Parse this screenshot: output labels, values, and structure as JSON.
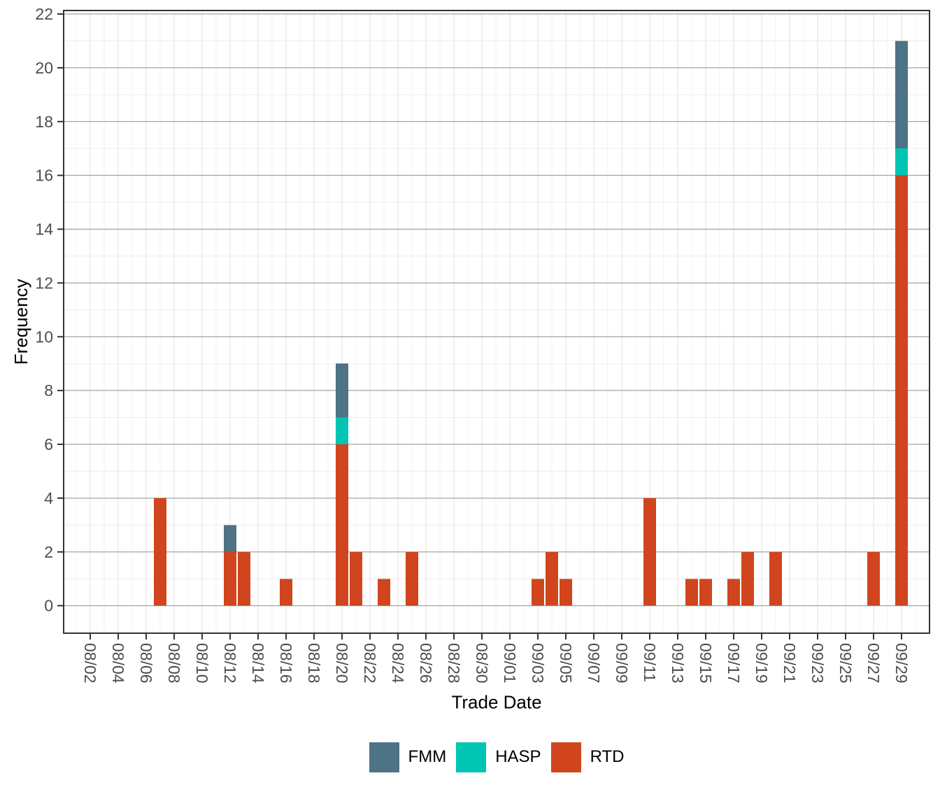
{
  "chart_data": {
    "type": "bar",
    "stacked": true,
    "title": "",
    "xlabel": "Trade Date",
    "ylabel": "Frequency",
    "x_tick_labels": [
      "08/02",
      "08/04",
      "08/06",
      "08/08",
      "08/10",
      "08/12",
      "08/14",
      "08/16",
      "08/18",
      "08/20",
      "08/22",
      "08/24",
      "08/26",
      "08/28",
      "08/30",
      "09/01",
      "09/03",
      "09/05",
      "09/07",
      "09/09",
      "09/11",
      "09/13",
      "09/15",
      "09/17",
      "09/19",
      "09/21",
      "09/23",
      "09/25",
      "09/27",
      "09/29"
    ],
    "y_ticks": [
      0,
      2,
      4,
      6,
      8,
      10,
      12,
      14,
      16,
      18,
      20,
      22
    ],
    "ylim": [
      -1,
      22.2
    ],
    "x_domain": [
      "07/31",
      "10/01"
    ],
    "grid": true,
    "stack_order": [
      "RTD",
      "HASP",
      "FMM"
    ],
    "series_colors": {
      "FMM": "#4E7286",
      "HASP": "#00C5B3",
      "RTD": "#D0451D"
    },
    "bars": [
      {
        "date": "08/07",
        "RTD": 4
      },
      {
        "date": "08/12",
        "RTD": 2,
        "FMM": 1
      },
      {
        "date": "08/13",
        "RTD": 2
      },
      {
        "date": "08/16",
        "RTD": 1
      },
      {
        "date": "08/20",
        "RTD": 6,
        "HASP": 1,
        "FMM": 2
      },
      {
        "date": "08/21",
        "RTD": 2
      },
      {
        "date": "08/23",
        "RTD": 1
      },
      {
        "date": "08/25",
        "RTD": 2
      },
      {
        "date": "09/03",
        "RTD": 1
      },
      {
        "date": "09/04",
        "RTD": 2
      },
      {
        "date": "09/05",
        "RTD": 1
      },
      {
        "date": "09/11",
        "RTD": 4
      },
      {
        "date": "09/14",
        "RTD": 1
      },
      {
        "date": "09/15",
        "RTD": 1
      },
      {
        "date": "09/17",
        "RTD": 1
      },
      {
        "date": "09/18",
        "RTD": 2
      },
      {
        "date": "09/20",
        "RTD": 2
      },
      {
        "date": "09/27",
        "RTD": 2
      },
      {
        "date": "09/29",
        "RTD": 16,
        "HASP": 1,
        "FMM": 4
      }
    ],
    "legend": {
      "position": "bottom",
      "entries": [
        "FMM",
        "HASP",
        "RTD"
      ]
    }
  }
}
